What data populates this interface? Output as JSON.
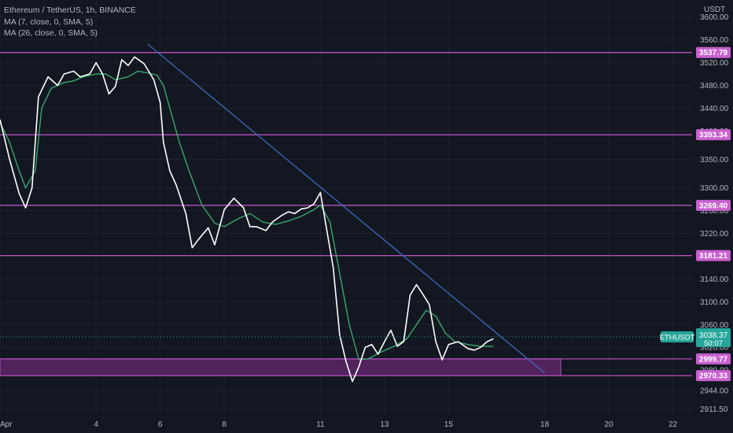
{
  "legend": {
    "title": "Ethereum / TetherUS, 1h, BINANCE",
    "ma1": "MA (7, close, 0, SMA, 5)",
    "ma2": "MA (26, close, 0, SMA, 5)"
  },
  "currency": "USDT",
  "colors": {
    "background": "#131722",
    "grid": "#1e222d",
    "price_line": "#ffffff",
    "ma_line": "#3aa66a",
    "level": "#b84fbf",
    "level_label_bg": "#c85fcf",
    "trendline": "#3f6fc8",
    "zone_fill": "#5d2566",
    "current_price": "#26a69a",
    "axis_text": "#b2b5be"
  },
  "chart_data": {
    "type": "line",
    "symbol": "ETHUSDT",
    "current_price": "3038.37",
    "countdown": "50:07",
    "x_ticks": [
      "Apr",
      "4",
      "6",
      "8",
      "11",
      "13",
      "15",
      "18",
      "20",
      "22"
    ],
    "x_range_days": [
      1,
      22.6
    ],
    "y_ticks": [
      2911.5,
      2944.0,
      2980.0,
      3020.0,
      3060.0,
      3100.0,
      3140.0,
      3180.0,
      3220.0,
      3260.0,
      3300.0,
      3350.0,
      3400.0,
      3440.0,
      3480.0,
      3520.0,
      3560.0,
      3600.0
    ],
    "y_range": [
      2900,
      3630
    ],
    "levels": [
      "3537.79",
      "3393.34",
      "3269.40",
      "3181.21",
      "2999.77",
      "2970.33"
    ],
    "zone": {
      "from": 2970.33,
      "to": 2999.77,
      "x_end_day": 18.5
    },
    "trendline": {
      "start": [
        5.6,
        3553
      ],
      "end": [
        18.0,
        2975
      ]
    },
    "series": [
      {
        "name": "price",
        "x": [
          1.0,
          1.3,
          1.6,
          1.8,
          2.0,
          2.2,
          2.5,
          2.8,
          3.0,
          3.3,
          3.5,
          3.8,
          4.0,
          4.2,
          4.4,
          4.6,
          4.8,
          5.0,
          5.2,
          5.5,
          5.8,
          6.0,
          6.1,
          6.3,
          6.5,
          6.8,
          7.0,
          7.2,
          7.5,
          7.7,
          8.0,
          8.3,
          8.6,
          8.8,
          9.0,
          9.3,
          9.5,
          9.8,
          10.0,
          10.2,
          10.4,
          10.6,
          10.8,
          11.0,
          11.2,
          11.4,
          11.6,
          11.8,
          12.0,
          12.2,
          12.4,
          12.6,
          12.8,
          13.0,
          13.2,
          13.4,
          13.6,
          13.8,
          14.0,
          14.2,
          14.4,
          14.6,
          14.8,
          15.0,
          15.3,
          15.6,
          15.8,
          16.0,
          16.2,
          16.4
        ],
        "values": [
          3420,
          3350,
          3290,
          3265,
          3300,
          3460,
          3495,
          3480,
          3500,
          3505,
          3495,
          3500,
          3520,
          3500,
          3465,
          3478,
          3525,
          3515,
          3530,
          3518,
          3490,
          3450,
          3380,
          3330,
          3305,
          3255,
          3195,
          3210,
          3230,
          3200,
          3262,
          3282,
          3265,
          3232,
          3232,
          3225,
          3240,
          3252,
          3258,
          3255,
          3263,
          3265,
          3272,
          3292,
          3225,
          3160,
          3042,
          2995,
          2960,
          2986,
          3020,
          3025,
          3008,
          3030,
          3050,
          3022,
          3030,
          3112,
          3130,
          3113,
          3095,
          3030,
          2998,
          3025,
          3030,
          3018,
          3015,
          3020,
          3030,
          3035
        ]
      },
      {
        "name": "ma",
        "x": [
          1.0,
          1.3,
          1.6,
          1.8,
          2.1,
          2.3,
          2.6,
          3.0,
          3.3,
          3.6,
          4.0,
          4.3,
          4.6,
          5.0,
          5.3,
          5.6,
          5.9,
          6.1,
          6.3,
          6.6,
          6.9,
          7.3,
          7.7,
          8.0,
          8.4,
          8.8,
          9.2,
          9.6,
          10.0,
          10.4,
          10.8,
          11.0,
          11.3,
          11.6,
          11.9,
          12.2,
          12.5,
          12.9,
          13.3,
          13.7,
          14.0,
          14.3,
          14.6,
          14.9,
          15.2,
          15.6,
          16.0,
          16.4
        ],
        "values": [
          3415,
          3380,
          3330,
          3300,
          3330,
          3440,
          3475,
          3485,
          3488,
          3495,
          3500,
          3500,
          3490,
          3495,
          3505,
          3502,
          3498,
          3480,
          3440,
          3380,
          3330,
          3270,
          3238,
          3232,
          3245,
          3255,
          3240,
          3236,
          3242,
          3250,
          3262,
          3270,
          3240,
          3150,
          3060,
          2998,
          3000,
          3012,
          3022,
          3035,
          3060,
          3085,
          3075,
          3045,
          3030,
          3025,
          3022,
          3022
        ]
      }
    ]
  }
}
